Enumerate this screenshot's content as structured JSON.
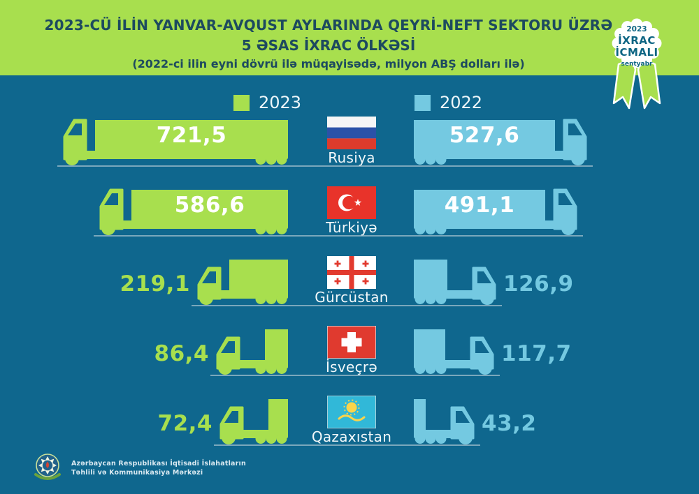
{
  "header": {
    "title_line1": "2023-CÜ İLİN YANVAR-AVQUST AYLARINDA QEYRİ-NEFT SEKTORU ÜZRƏ",
    "title_line2": "5 ƏSAS İXRAC ÖLKƏSİ",
    "subtitle": "(2022-ci ilin eyni dövrü ilə müqayisədə, milyon ABŞ dolları ilə)"
  },
  "badge": {
    "year": "2023",
    "title_line1": "İXRAC",
    "title_line2": "İCMALI",
    "month": "sentyabr"
  },
  "legend": {
    "items": [
      {
        "label": "2023",
        "color": "#a8df4e"
      },
      {
        "label": "2022",
        "color": "#74c9e1"
      }
    ]
  },
  "chart_data": {
    "type": "bar",
    "orientation": "horizontal-pictogram-trucks",
    "title": "2023-cü ilin yanvar-avqust aylarında qeyri-neft sektoru üzrə 5 əsas ixrac ölkəsi",
    "subtitle": "2022-ci ilin eyni dövrü ilə müqayisədə, milyon ABŞ dolları ilə",
    "unit": "milyon ABŞ dolları",
    "categories": [
      "Rusiya",
      "Türkiyə",
      "Gürcüstan",
      "İsveçrə",
      "Qazaxıstan"
    ],
    "series": [
      {
        "name": "2023",
        "color": "#a8df4e",
        "values": [
          721.5,
          586.6,
          219.1,
          86.4,
          72.4
        ]
      },
      {
        "name": "2022",
        "color": "#74c9e1",
        "values": [
          527.6,
          491.1,
          126.9,
          117.7,
          43.2
        ]
      }
    ],
    "value_labels": [
      [
        "721,5",
        "586,6",
        "219,1",
        "86,4",
        "72,4"
      ],
      [
        "527,6",
        "491,1",
        "126,9",
        "117,7",
        "43,2"
      ]
    ],
    "legend_position": "top"
  },
  "rows": [
    {
      "country": "Rusiya",
      "flag": "russia",
      "value_2023": "721,5",
      "value_2022": "527,6",
      "num_2023": 721.5,
      "num_2022": 527.6
    },
    {
      "country": "Türkiyə",
      "flag": "turkiye",
      "value_2023": "586,6",
      "value_2022": "491,1",
      "num_2023": 586.6,
      "num_2022": 491.1
    },
    {
      "country": "Gürcüstan",
      "flag": "georgia",
      "value_2023": "219,1",
      "value_2022": "126,9",
      "num_2023": 219.1,
      "num_2022": 126.9
    },
    {
      "country": "İsveçrə",
      "flag": "switzerland",
      "value_2023": "86,4",
      "value_2022": "117,7",
      "num_2023": 86.4,
      "num_2022": 117.7
    },
    {
      "country": "Qazaxıstan",
      "flag": "kazakhstan",
      "value_2023": "72,4",
      "value_2022": "43,2",
      "num_2023": 72.4,
      "num_2022": 43.2
    }
  ],
  "footer": {
    "org_line1": "Azərbaycan Respublikası İqtisadi İslahatların",
    "org_line2": "Təhlili və Kommunikasiya Mərkəzi"
  },
  "colors": {
    "background": "#0f678e",
    "green": "#a8df4e",
    "blue": "#74c9e1",
    "header_text": "#1d4a5f",
    "badge_text": "#0d6583",
    "baseline": "#9fbecb",
    "white": "#ffffff"
  }
}
